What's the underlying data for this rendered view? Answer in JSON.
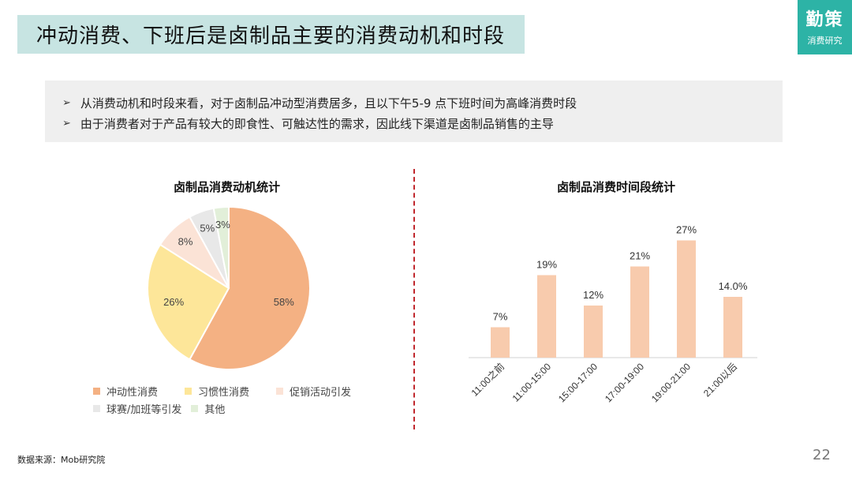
{
  "header": {
    "title": "冲动消费、下班后是卤制品主要的消费动机和时段"
  },
  "logo": {
    "main": "勤策",
    "sub": "消费研究"
  },
  "summary": {
    "bullets": [
      "从消费动机和时段来看，对于卤制品冲动型消费居多，且以下午5-9 点下班时间为高峰消费时段",
      "由于消费者对于产品有较大的即食性、可触达性的需求，因此线下渠道是卤制品销售的主导"
    ]
  },
  "footer": {
    "source": "数据来源：Mob研究院",
    "page": "22"
  },
  "chart_data": [
    {
      "type": "pie",
      "title": "卤制品消费动机统计",
      "labels": [
        "冲动性消费",
        "习惯性消费",
        "促销活动引发",
        "球赛/加班等引发",
        "其他"
      ],
      "values": [
        58,
        26,
        8,
        5,
        3
      ],
      "value_labels": [
        "58%",
        "26%",
        "8%",
        "5%",
        "3%"
      ],
      "colors": [
        "#f4b183",
        "#fde699",
        "#fbe3d6",
        "#e8e8e8",
        "#e2efd9"
      ],
      "legend_position": "bottom"
    },
    {
      "type": "bar",
      "title": "卤制品消费时间段统计",
      "categories": [
        "11:00之前",
        "11:00-15:00",
        "15:00-17:00",
        "17:00-19:00",
        "19:00-21:00",
        "21:00以后"
      ],
      "values": [
        7,
        19,
        12,
        21,
        27,
        14
      ],
      "value_labels": [
        "7%",
        "19%",
        "12%",
        "21%",
        "27%",
        "14.0%"
      ],
      "color": "#f8cbad",
      "ylim": [
        0,
        30
      ],
      "grid": false
    }
  ]
}
